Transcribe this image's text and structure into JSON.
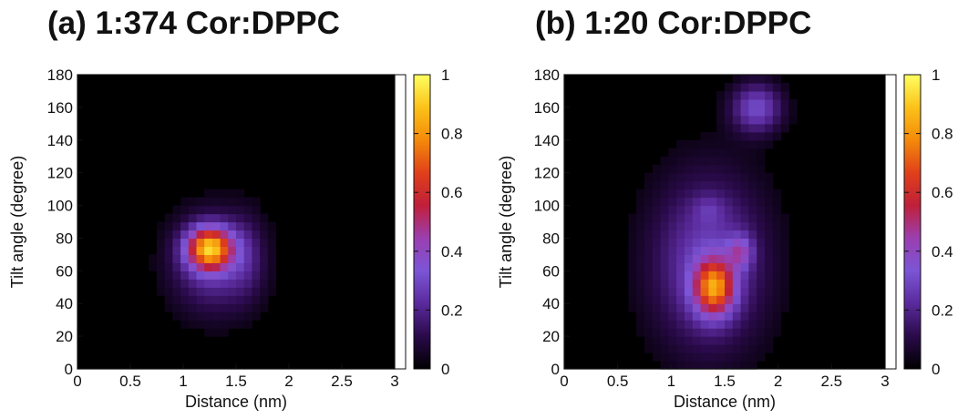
{
  "chart_data": [
    {
      "type": "heatmap",
      "title": "(a) 1:374 Cor:DPPC",
      "xlabel": "Distance (nm)",
      "ylabel": "Tilt angle (degree)",
      "xlim": [
        0,
        3
      ],
      "ylim": [
        0,
        180
      ],
      "x_ticks": [
        "0",
        "0.5",
        "1",
        "1.5",
        "2",
        "2.5",
        "3"
      ],
      "y_ticks": [
        "0",
        "20",
        "40",
        "60",
        "80",
        "100",
        "120",
        "140",
        "160",
        "180"
      ],
      "colorbar": {
        "range": [
          0,
          1
        ],
        "ticks": [
          "0",
          "0.2",
          "0.4",
          "0.6",
          "0.8",
          "1"
        ]
      },
      "colormap": [
        "#000000",
        "#2a0a4a",
        "#5a2a9c",
        "#7b55d6",
        "#9b3fb0",
        "#c01f3a",
        "#e0401a",
        "#f48a0a",
        "#fbc21a",
        "#ffff60"
      ],
      "background": "#000000",
      "blobs": [
        {
          "x": 1.3,
          "y": 65,
          "sx": 0.3,
          "sy": 22,
          "amp": 0.24
        },
        {
          "x": 1.25,
          "y": 74,
          "sx": 0.15,
          "sy": 9,
          "amp": 0.72
        },
        {
          "x": 1.6,
          "y": 70,
          "sx": 0.12,
          "sy": 18,
          "amp": 0.08
        }
      ]
    },
    {
      "type": "heatmap",
      "title": "(b) 1:20 Cor:DPPC",
      "xlabel": "Distance (nm)",
      "ylabel": "Tilt angle (degree)",
      "xlim": [
        0,
        3
      ],
      "ylim": [
        0,
        180
      ],
      "x_ticks": [
        "0",
        "0.5",
        "1",
        "1.5",
        "2",
        "2.5",
        "3"
      ],
      "y_ticks": [
        "0",
        "20",
        "40",
        "60",
        "80",
        "100",
        "120",
        "140",
        "160",
        "180"
      ],
      "colorbar": {
        "range": [
          0,
          1
        ],
        "ticks": [
          "0",
          "0.2",
          "0.4",
          "0.6",
          "0.8",
          "1"
        ]
      },
      "colormap": [
        "#000000",
        "#2a0a4a",
        "#5a2a9c",
        "#7b55d6",
        "#9b3fb0",
        "#c01f3a",
        "#e0401a",
        "#f48a0a",
        "#fbc21a",
        "#ffff60"
      ],
      "background": "#000000",
      "blobs": [
        {
          "x": 1.35,
          "y": 65,
          "sx": 0.38,
          "sy": 38,
          "amp": 0.28
        },
        {
          "x": 1.4,
          "y": 50,
          "sx": 0.13,
          "sy": 12,
          "amp": 0.6
        },
        {
          "x": 1.65,
          "y": 72,
          "sx": 0.08,
          "sy": 7,
          "amp": 0.25
        },
        {
          "x": 1.35,
          "y": 98,
          "sx": 0.1,
          "sy": 6,
          "amp": 0.08
        },
        {
          "x": 1.8,
          "y": 160,
          "sx": 0.17,
          "sy": 11,
          "amp": 0.3
        }
      ]
    }
  ]
}
